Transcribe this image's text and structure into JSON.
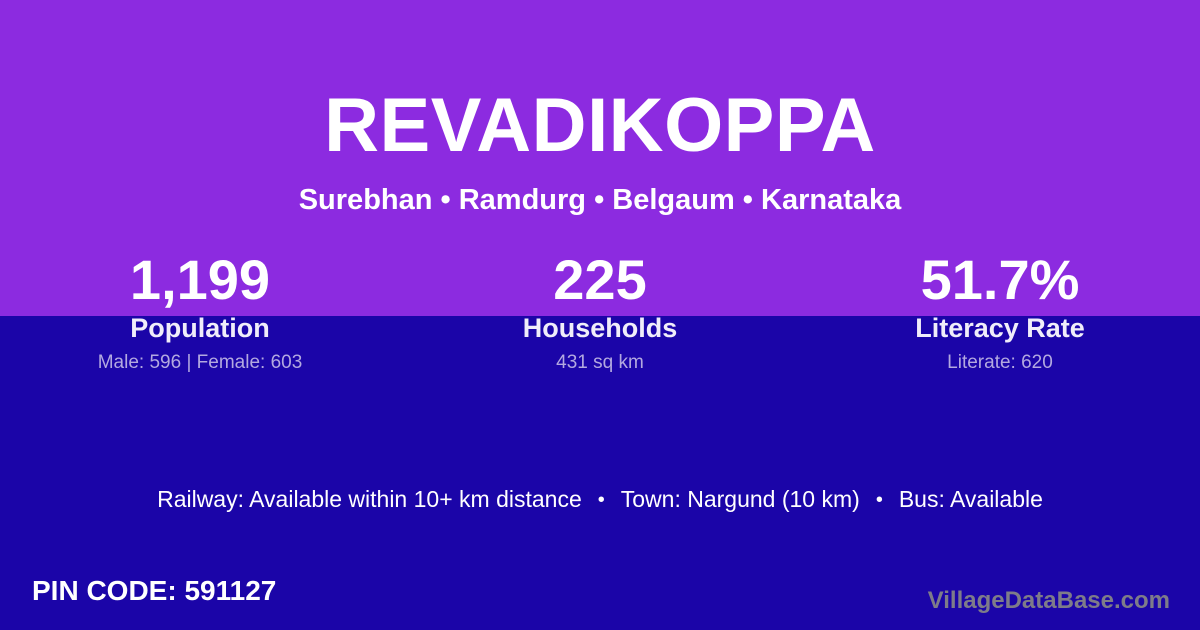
{
  "header": {
    "title": "REVADIKOPPA",
    "location": "Surebhan • Ramdurg • Belgaum • Karnataka"
  },
  "stats": [
    {
      "value": "1,199",
      "label": "Population",
      "detail": "Male: 596 | Female: 603"
    },
    {
      "value": "225",
      "label": "Households",
      "detail": "431 sq km"
    },
    {
      "value": "51.7%",
      "label": "Literacy Rate",
      "detail": "Literate: 620"
    }
  ],
  "transport": {
    "railway_label": "Railway: Available within 10+ km distance",
    "town_label": "Town: Nargund (10 km)",
    "bus_label": "Bus: Available",
    "bullet": "•"
  },
  "footer": {
    "pin_code_label": "PIN CODE: 591127",
    "watermark": "VillageDataBase.com"
  },
  "colors": {
    "top_bg": "#8C2BE0",
    "bottom_bg": "#1B05A8",
    "text_primary": "#FFFFFF",
    "text_label": "#F0EDFA",
    "text_detail": "#B3A9E0",
    "watermark_color": "#7E7C89"
  }
}
